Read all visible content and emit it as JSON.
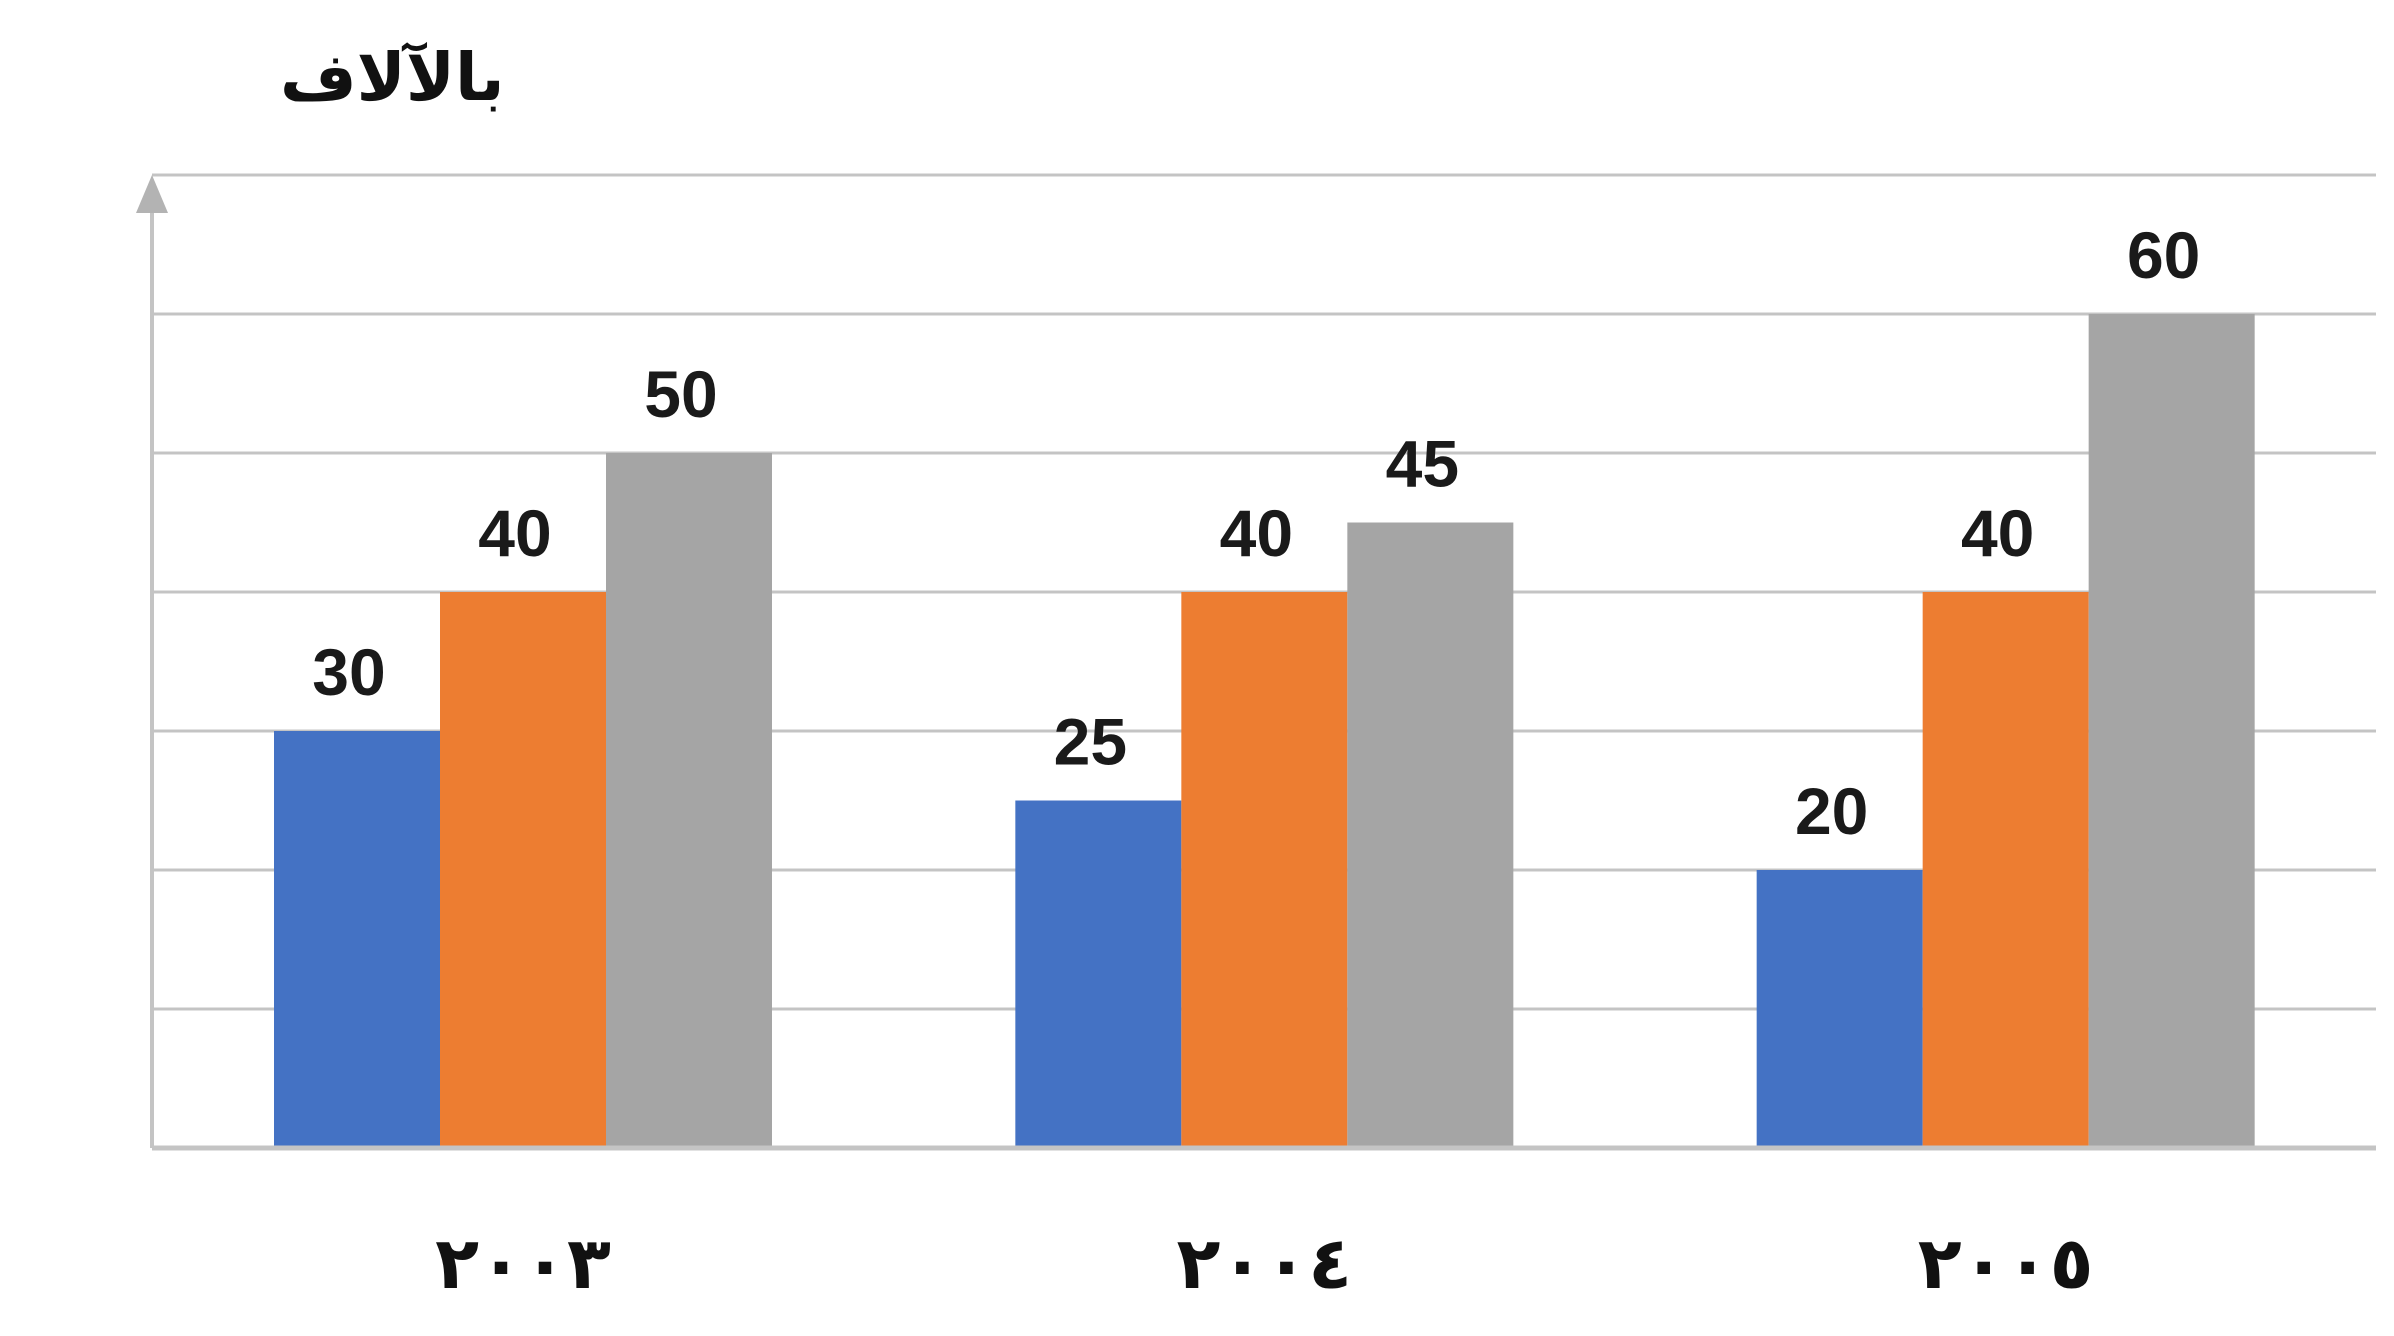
{
  "chart_data": {
    "type": "bar",
    "unit_label": "بالآلاف",
    "categories": [
      "٢٠٠٣",
      "٢٠٠٤",
      "٢٠٠٥"
    ],
    "series": [
      {
        "values": [
          30,
          25,
          20
        ],
        "color": "#4472C4"
      },
      {
        "values": [
          40,
          40,
          40
        ],
        "color": "#ED7D31"
      },
      {
        "values": [
          50,
          45,
          60
        ],
        "color": "#A5A5A5"
      }
    ],
    "data_labels": true,
    "ylim": [
      0,
      70
    ],
    "gridline_step": 10,
    "grid": true,
    "legend": "none"
  }
}
